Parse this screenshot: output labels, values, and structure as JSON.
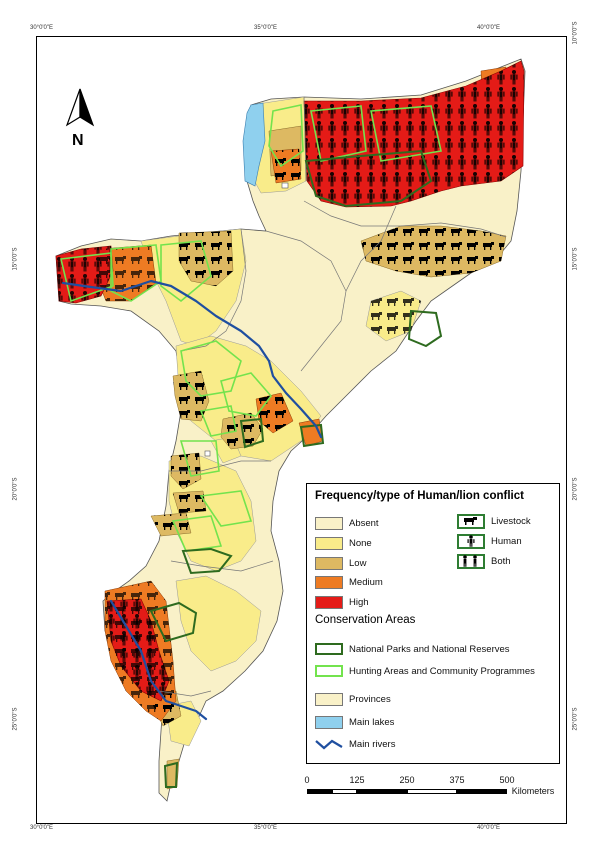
{
  "coordinates": {
    "top_lon": [
      "30°0'0\"E",
      "35°0'0\"E",
      "40°0'0\"E"
    ],
    "bottom_lon": [
      "30°0'0\"E",
      "35°0'0\"E",
      "40°0'0\"E"
    ],
    "left_lat": [
      "15°0'0\"S",
      "20°0'0\"S",
      "25°0'0\"S"
    ],
    "right_lat": [
      "10°0'0\"S",
      "15°0'0\"S",
      "20°0'0\"S",
      "25°0'0\"S"
    ]
  },
  "north_arrow": {
    "label": "N"
  },
  "legend": {
    "title": "Frequency/type of Human/lion conflict",
    "frequency": [
      {
        "label": "Absent",
        "color": "#f9f1c8"
      },
      {
        "label": "None",
        "color": "#f9ec8a"
      },
      {
        "label": "Low",
        "color": "#ddb962"
      },
      {
        "label": "Medium",
        "color": "#ee7b23"
      },
      {
        "label": "High",
        "color": "#e41b17"
      }
    ],
    "type": [
      {
        "label": "Livestock",
        "icon": "livestock-icon"
      },
      {
        "label": "Human",
        "icon": "human-icon"
      },
      {
        "label": "Both",
        "icon": "both-icon"
      }
    ],
    "conservation_title": "Conservation Areas",
    "conservation": [
      {
        "label": "National Parks and National Reserves",
        "color": "#2e6b1f"
      },
      {
        "label": "Hunting Areas and Community Programmes",
        "color": "#73e34d"
      }
    ],
    "other": [
      {
        "label": "Provinces",
        "color": "#f9f1c8"
      },
      {
        "label": "Main lakes",
        "color": "#8fd0ee"
      },
      {
        "label": "Main rivers",
        "color": "#1f4fa0"
      }
    ]
  },
  "scale_bar": {
    "ticks": [
      "0",
      "125",
      "250",
      "375",
      "500"
    ],
    "unit": "Kilometers"
  }
}
